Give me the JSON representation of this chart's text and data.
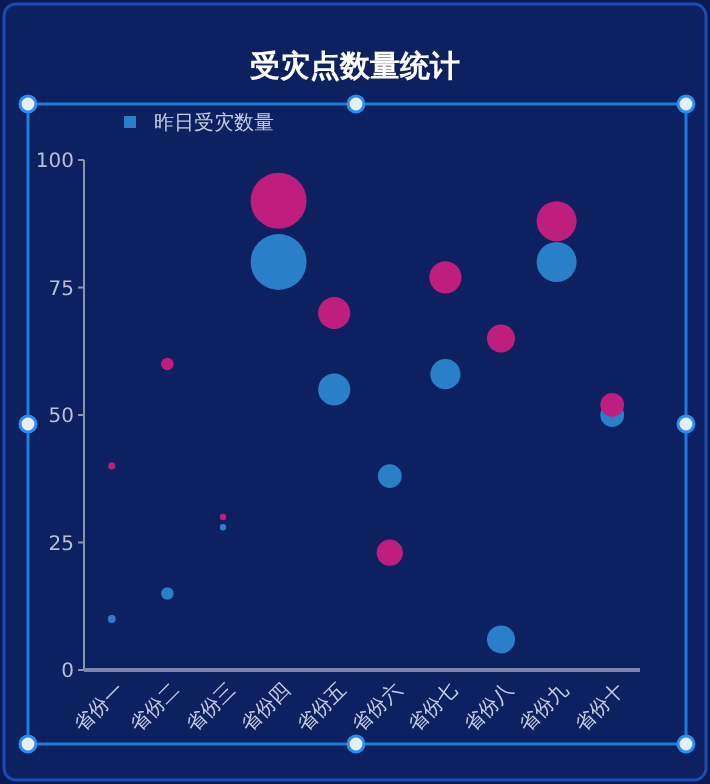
{
  "chart_data": {
    "type": "bubble",
    "title": "受灾点数量统计",
    "categories": [
      "省份一",
      "省份二",
      "省份三",
      "省份四",
      "省份五",
      "省份六",
      "省份七",
      "省份八",
      "省份九",
      "省份十"
    ],
    "series": [
      {
        "name": "昨日受灾数量",
        "color": "#2a7fc9",
        "values": [
          10,
          15,
          28,
          80,
          55,
          38,
          58,
          6,
          80,
          50
        ],
        "sizes": [
          0.02,
          0.05,
          0.013,
          1,
          0.33,
          0.18,
          0.29,
          0.25,
          0.51,
          0.18
        ]
      },
      {
        "color": "#c01e7e",
        "values": [
          40,
          60,
          30,
          92,
          70,
          23,
          77,
          65,
          88,
          52
        ],
        "sizes": [
          0.016,
          0.05,
          0.013,
          1,
          0.33,
          0.22,
          0.33,
          0.25,
          0.51,
          0.18
        ]
      }
    ],
    "ylim": [
      0,
      100
    ],
    "yticks": [
      0,
      25,
      50,
      75,
      100
    ],
    "grid": false,
    "legend": "top left"
  }
}
